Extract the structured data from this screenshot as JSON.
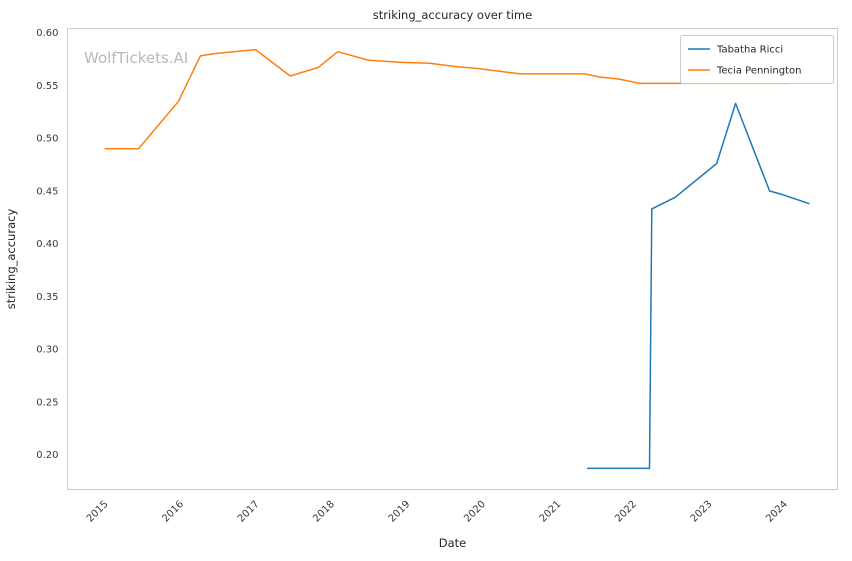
{
  "chart_data": {
    "type": "line",
    "title": "striking_accuracy over time",
    "xlabel": "Date",
    "ylabel": "striking_accuracy",
    "watermark": "WolfTickets.AI",
    "grid": true,
    "legend_position": "upper right",
    "xlim": [
      2014.55,
      2024.75
    ],
    "ylim": [
      0.167,
      0.604
    ],
    "x_ticks": [
      2015,
      2016,
      2017,
      2018,
      2019,
      2020,
      2021,
      2022,
      2023,
      2024
    ],
    "y_ticks": [
      0.2,
      0.25,
      0.3,
      0.35,
      0.4,
      0.45,
      0.5,
      0.55,
      0.6
    ],
    "series": [
      {
        "name": "Tabatha Ricci",
        "color": "#1f77b4",
        "points": [
          [
            2021.44,
            0.187
          ],
          [
            2022.26,
            0.187
          ],
          [
            2022.29,
            0.433
          ],
          [
            2022.6,
            0.444
          ],
          [
            2023.15,
            0.476
          ],
          [
            2023.4,
            0.533
          ],
          [
            2023.85,
            0.45
          ],
          [
            2024.0,
            0.447
          ],
          [
            2024.37,
            0.438
          ]
        ]
      },
      {
        "name": "Tecia Pennington",
        "color": "#ff7f0e",
        "points": [
          [
            2015.05,
            0.49
          ],
          [
            2015.49,
            0.49
          ],
          [
            2016.02,
            0.535
          ],
          [
            2016.31,
            0.578
          ],
          [
            2016.48,
            0.58
          ],
          [
            2017.04,
            0.584
          ],
          [
            2017.5,
            0.559
          ],
          [
            2017.87,
            0.567
          ],
          [
            2018.13,
            0.582
          ],
          [
            2018.53,
            0.574
          ],
          [
            2018.95,
            0.572
          ],
          [
            2019.35,
            0.571
          ],
          [
            2019.68,
            0.568
          ],
          [
            2020.0,
            0.566
          ],
          [
            2020.55,
            0.561
          ],
          [
            2021.07,
            0.561
          ],
          [
            2021.4,
            0.561
          ],
          [
            2021.6,
            0.558
          ],
          [
            2021.86,
            0.556
          ],
          [
            2022.13,
            0.552
          ],
          [
            2022.5,
            0.552
          ],
          [
            2023.05,
            0.552
          ],
          [
            2023.5,
            0.552
          ],
          [
            2024.1,
            0.552
          ],
          [
            2024.37,
            0.554
          ]
        ]
      }
    ]
  }
}
